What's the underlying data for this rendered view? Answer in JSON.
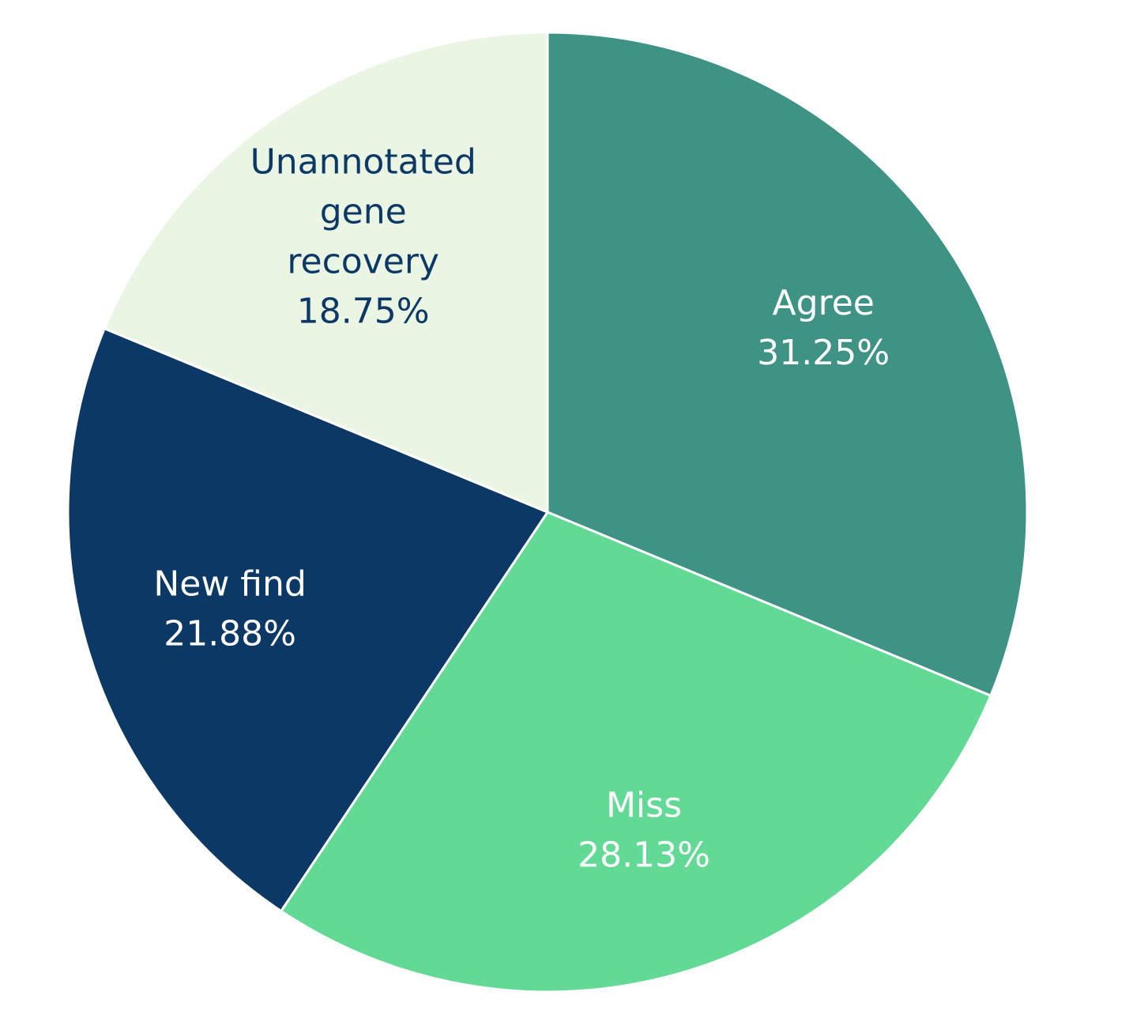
{
  "chart_data": {
    "type": "pie",
    "start_angle_deg": 0,
    "direction": "clockwise",
    "slices": [
      {
        "label_lines": [
          "Agree"
        ],
        "value": 31.25,
        "value_label": "31.25%",
        "color": "#3f9384",
        "text_color": "#ffffff"
      },
      {
        "label_lines": [
          "Miss"
        ],
        "value": 28.13,
        "value_label": "28.13%",
        "color": "#63d996",
        "text_color": "#ffffff"
      },
      {
        "label_lines": [
          "New find"
        ],
        "value": 21.88,
        "value_label": "21.88%",
        "color": "#0c3866",
        "text_color": "#ffffff"
      },
      {
        "label_lines": [
          "Unannotated",
          "gene",
          "recovery"
        ],
        "value": 18.75,
        "value_label": "18.75%",
        "color": "#ebf5e3",
        "text_color": "#0c3866"
      }
    ]
  }
}
